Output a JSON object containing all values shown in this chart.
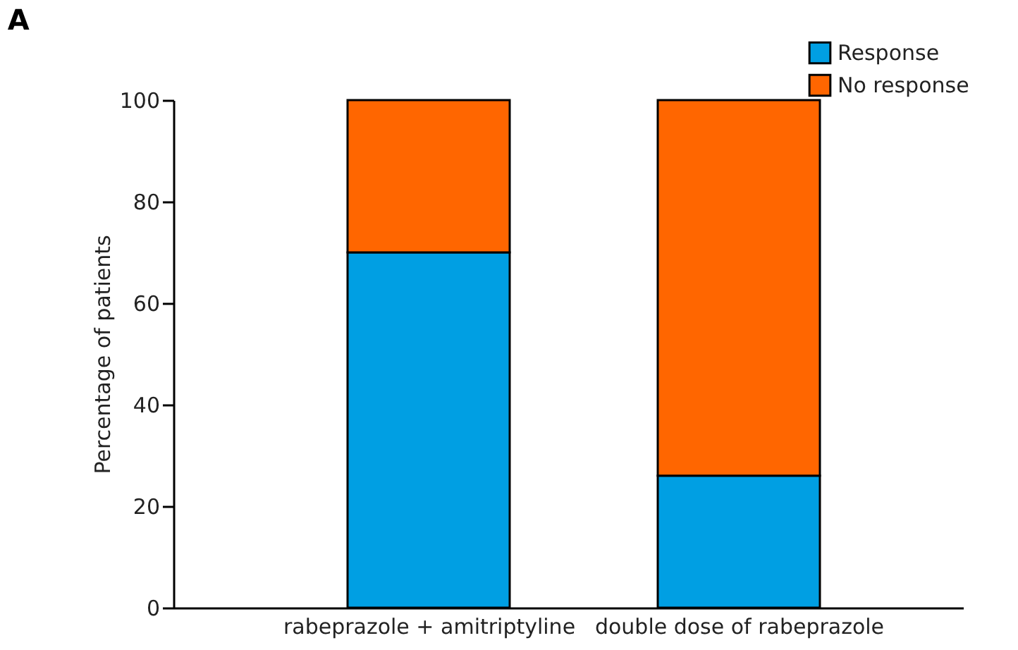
{
  "chart_data": {
    "type": "bar",
    "title": "A",
    "ylabel": "Percentage of patients",
    "categories": [
      "rabeprazole + amitriptyline",
      "double dose of rabeprazole"
    ],
    "series": [
      {
        "name": "Response",
        "color": "#009fe3",
        "values": [
          70,
          26
        ]
      },
      {
        "name": "No response",
        "color": "#ff6600",
        "values": [
          30,
          74
        ]
      }
    ],
    "stacked": true,
    "ylim": [
      0,
      100
    ],
    "yticks": [
      0,
      20,
      40,
      60,
      80,
      100
    ],
    "grid": false,
    "legend": "top right"
  }
}
